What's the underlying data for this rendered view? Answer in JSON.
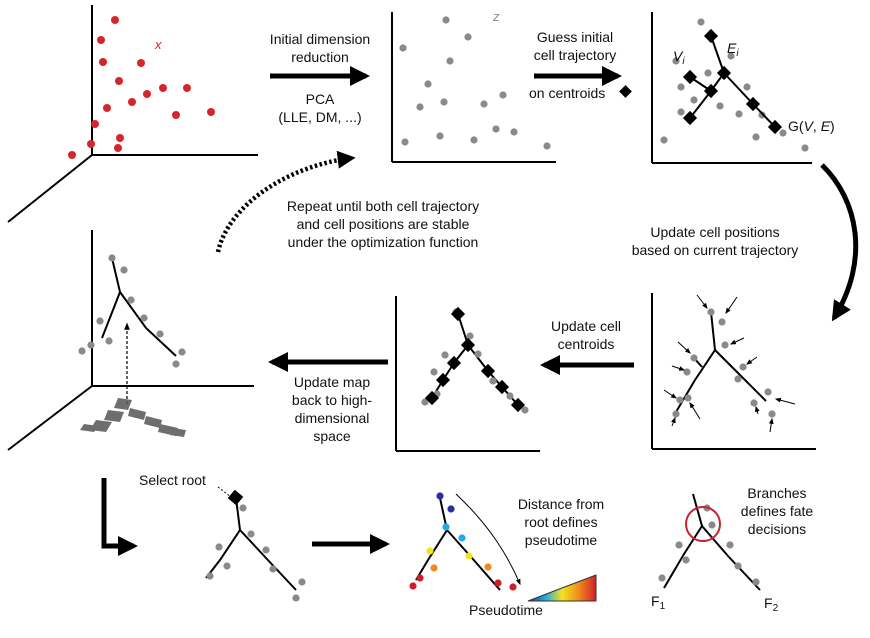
{
  "labels": {
    "axis_x": "x",
    "axis_z": "z",
    "step1_line1": "Initial dimension",
    "step1_line2": "reduction",
    "step1_line3": "PCA",
    "step1_line4": "(LLE, DM, ...)",
    "step2_line1": "Guess initial",
    "step2_line2": "cell trajectory",
    "step2_line3": "on centroids",
    "node_v": "V",
    "node_v_sub": "i",
    "edge_e": "E",
    "edge_e_sub": "i",
    "graph_label_prefix": "G(",
    "graph_label_v": "V",
    "graph_label_sep": ", ",
    "graph_label_e": "E",
    "graph_label_suffix": ")",
    "repeat_line1": "Repeat until both cell trajectory",
    "repeat_line2": "and cell positions are stable",
    "repeat_line3": "under the optimization function",
    "update_pos_line1": "Update cell positions",
    "update_pos_line2": "based on current trajectory",
    "update_cent_line1": "Update cell",
    "update_cent_line2": "centroids",
    "update_map_line1": "Update map",
    "update_map_line2": "back to high-",
    "update_map_line3": "dimensional",
    "update_map_line4": "space",
    "select_root": "Select root",
    "distance_line1": "Distance from",
    "distance_line2": "root defines",
    "distance_line3": "pseudotime",
    "pseudotime": "Pseudotime",
    "branches_line1": "Branches",
    "branches_line2": "defines fate",
    "branches_line3": "decisions",
    "fate1": "F",
    "fate1_sub": "1",
    "fate2": "F",
    "fate2_sub": "2"
  },
  "colors": {
    "cell_red": "#d7262b",
    "cell_grey": "#8a8a8a",
    "ink": "#000000",
    "branch_circle": "#c8232c"
  }
}
